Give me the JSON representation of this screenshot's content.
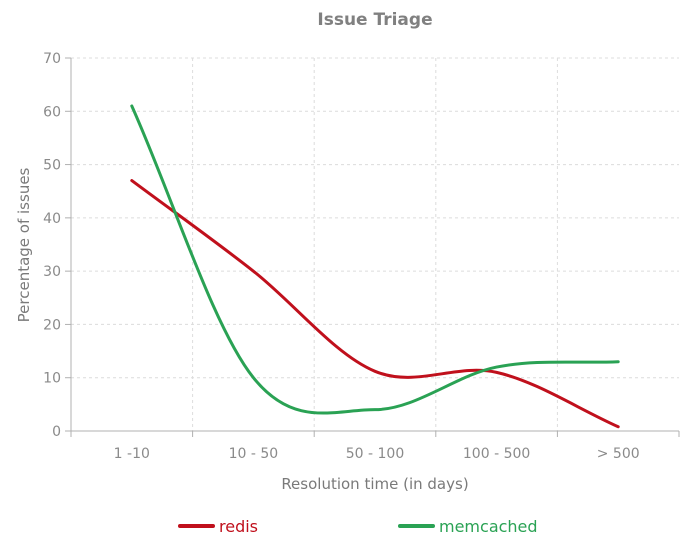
{
  "chart_data": {
    "type": "line",
    "title": "Issue Triage",
    "xlabel": "Resolution time (in days)",
    "ylabel": "Percentage of issues",
    "categories": [
      "1 -10",
      "10 - 50",
      "50 - 100",
      "100 - 500",
      "> 500"
    ],
    "ylim": [
      0,
      70
    ],
    "yticks": [
      0,
      10,
      20,
      30,
      40,
      50,
      60,
      70
    ],
    "grid": true,
    "curve": "smooth",
    "legend_position": "bottom",
    "series": [
      {
        "name": "redis",
        "color": "#c0101c",
        "values": [
          47,
          30,
          11.2,
          11,
          0.8
        ]
      },
      {
        "name": "memcached",
        "color": "#2aa254",
        "values": [
          61,
          10,
          4,
          12,
          13
        ]
      }
    ]
  }
}
